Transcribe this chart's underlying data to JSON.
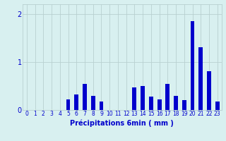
{
  "xlabel": "Précipitations 6min ( mm )",
  "background_color": "#d8f0f0",
  "bar_color": "#0000cc",
  "grid_color": "#b8d0d0",
  "text_color": "#0000cc",
  "ylim": [
    0,
    2.2
  ],
  "yticks": [
    0,
    1,
    2
  ],
  "xlim": [
    -0.5,
    23.5
  ],
  "xticks": [
    0,
    1,
    2,
    3,
    4,
    5,
    6,
    7,
    8,
    9,
    10,
    11,
    12,
    13,
    14,
    15,
    16,
    17,
    18,
    19,
    20,
    21,
    22,
    23
  ],
  "values": [
    0,
    0,
    0,
    0,
    0,
    0.22,
    0.32,
    0.55,
    0.3,
    0.18,
    0.0,
    0.0,
    0.0,
    0.47,
    0.5,
    0.28,
    0.22,
    0.55,
    0.3,
    0.2,
    1.85,
    1.3,
    0.8,
    0.18
  ],
  "xlabel_fontsize": 7,
  "tick_fontsize": 5.5,
  "ytick_fontsize": 7,
  "bar_width": 0.5
}
